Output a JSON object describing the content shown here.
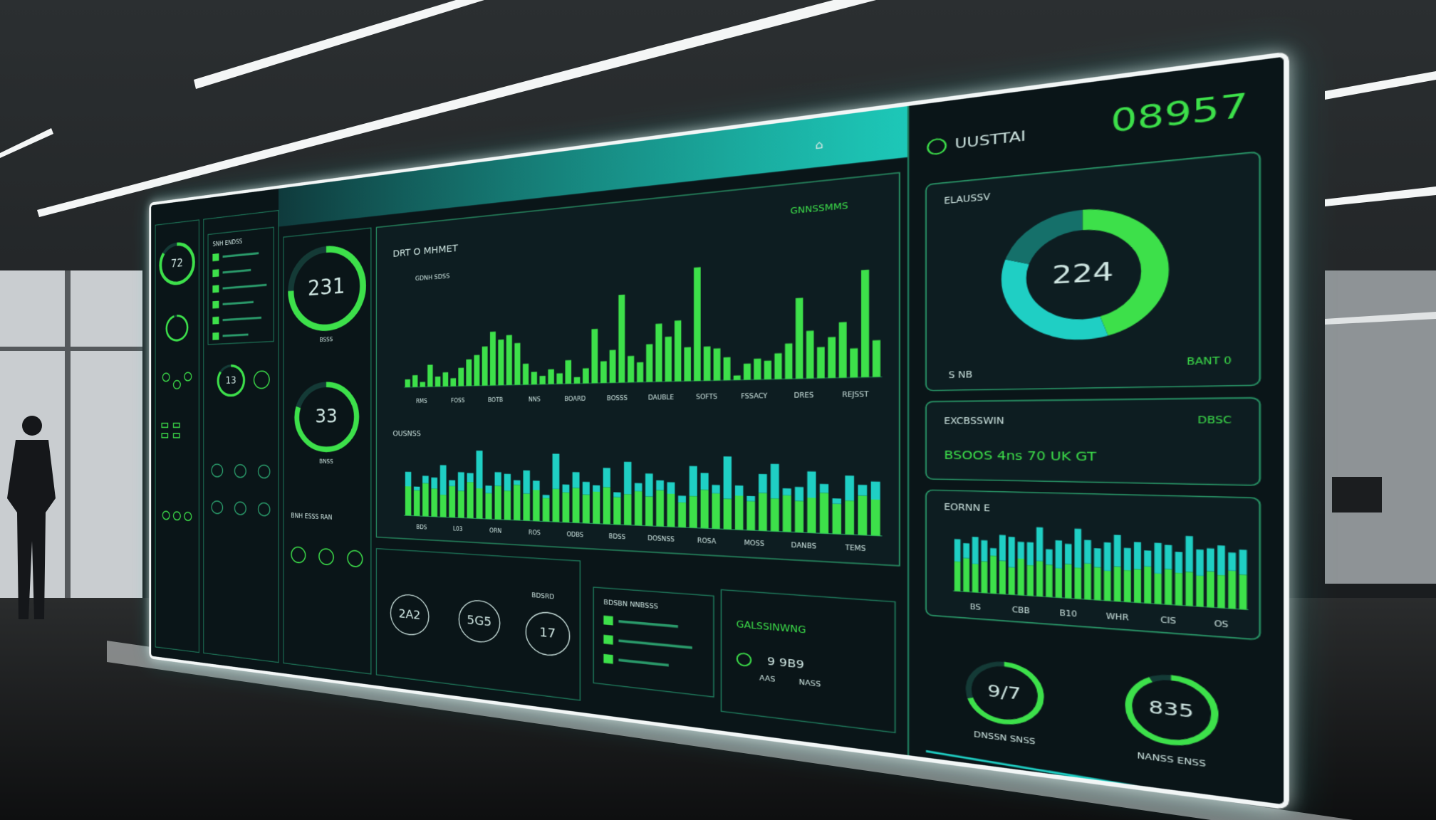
{
  "header": {
    "brand": "UUSTTAI",
    "counter": "08957"
  },
  "gauges": [
    {
      "label": "72",
      "value": 85
    },
    {
      "value": 95
    },
    {
      "label": "13",
      "value": 85
    },
    {
      "label": "231",
      "value": 75,
      "caption": "BSSS"
    },
    {
      "label": "33",
      "value": 80,
      "caption": "BNSS"
    },
    {
      "label": "9/7",
      "value": 70,
      "caption": "DNSSN SNSS"
    },
    {
      "label": "835",
      "value": 92,
      "caption": "NANSS ENSS"
    }
  ],
  "list_panel": {
    "title": "SNH ENDSS",
    "values": [
      70,
      55,
      85,
      60,
      75,
      50
    ]
  },
  "column3": {
    "label": "BNH ESSS RAN"
  },
  "charts": [
    {
      "title": "DRT O MHMET",
      "legend": "GNNSSMMS",
      "subtitle": "GDNH SDSS",
      "ylim": [
        0,
        100
      ],
      "x_labels": [
        "RMS",
        "FOSS",
        "BOTB",
        "NNS",
        "BOARD",
        "BOSSS",
        "DAUBLE",
        "SOFTS",
        "FSSACY",
        "DRES",
        "REJSST"
      ],
      "series": [
        {
          "color": "#3de04a",
          "values": [
            8,
            12,
            5,
            22,
            10,
            14,
            8,
            18,
            26,
            30,
            38,
            52,
            44,
            48,
            40,
            20,
            12,
            8,
            14,
            10,
            22,
            6,
            14,
            50,
            20,
            30,
            80,
            24,
            18,
            34,
            52,
            40,
            54,
            30,
            100,
            30,
            28,
            20,
            4,
            14,
            18,
            16,
            22,
            30,
            68,
            40,
            26,
            34,
            46,
            24,
            88,
            30
          ]
        }
      ]
    },
    {
      "title": "OUSNSS",
      "ylim": [
        0,
        100
      ],
      "x_labels": [
        "BDS",
        "L03",
        "ORN",
        "ROS",
        "ODBS",
        "BDSS",
        "DOSNSS",
        "ROSA",
        "MOSS",
        "DANBS",
        "TEMS"
      ],
      "series": [
        {
          "color": "#3de04a",
          "values": [
            40,
            35,
            45,
            38,
            30,
            42,
            36,
            48,
            40,
            34,
            44,
            38,
            46,
            35,
            40,
            30,
            42,
            38,
            44,
            36,
            40,
            46,
            34,
            38,
            42,
            36,
            44,
            40,
            30,
            38,
            46,
            42,
            36,
            40,
            34,
            44,
            38,
            42,
            36,
            40,
            46,
            34,
            38,
            44,
            40
          ]
        },
        {
          "color": "#1fcfc4",
          "values": [
            20,
            5,
            10,
            15,
            40,
            8,
            25,
            12,
            50,
            10,
            18,
            22,
            6,
            30,
            12,
            4,
            45,
            10,
            20,
            16,
            8,
            24,
            6,
            40,
            10,
            28,
            12,
            14,
            8,
            36,
            20,
            10,
            50,
            12,
            6,
            22,
            40,
            8,
            16,
            30,
            10,
            6,
            28,
            12,
            20
          ]
        }
      ]
    },
    {
      "title": "EORNN E",
      "ylim": [
        0,
        100
      ],
      "x_labels": [
        "BS",
        "CBB",
        "B10",
        "WHR",
        "CIS",
        "OS"
      ],
      "series": [
        {
          "color": "#3de04a",
          "values": [
            40,
            45,
            38,
            42,
            50,
            44,
            36,
            48,
            40,
            46,
            42,
            38,
            44,
            40,
            46,
            42,
            38,
            44,
            40,
            42,
            46,
            38,
            44,
            40,
            42,
            38,
            44,
            40,
            46,
            42
          ]
        },
        {
          "color": "#1fcfc4",
          "values": [
            30,
            20,
            36,
            28,
            10,
            34,
            40,
            22,
            30,
            44,
            20,
            36,
            26,
            50,
            30,
            24,
            36,
            40,
            28,
            34,
            20,
            38,
            30,
            26,
            44,
            32,
            28,
            36,
            22,
            30
          ]
        }
      ]
    }
  ],
  "bottom_row": {
    "metrics": [
      "2A2",
      "5G5",
      "17"
    ],
    "caption": "BDSRD"
  },
  "bottom_list": {
    "title": "BDSBN NNBSSS",
    "values": [
      65,
      80,
      55
    ]
  },
  "status_box": {
    "title": "GALSSINWNG",
    "value": "9 9B9",
    "captions": [
      "AAS",
      "NASS"
    ]
  },
  "donut": {
    "title": "ELAUSSV",
    "label": "224",
    "captions": [
      "S NB",
      "BANT 0"
    ],
    "series": [
      {
        "color": "#3de04a",
        "values": [
          45
        ]
      },
      {
        "color": "#1fcfc4",
        "values": [
          35
        ]
      },
      {
        "color": "#15706a",
        "values": [
          20
        ]
      }
    ]
  },
  "exchange": {
    "title": "EXCBSSWIN",
    "tag": "DBSC",
    "value": "BSOOS 4ns 70 UK GT"
  }
}
